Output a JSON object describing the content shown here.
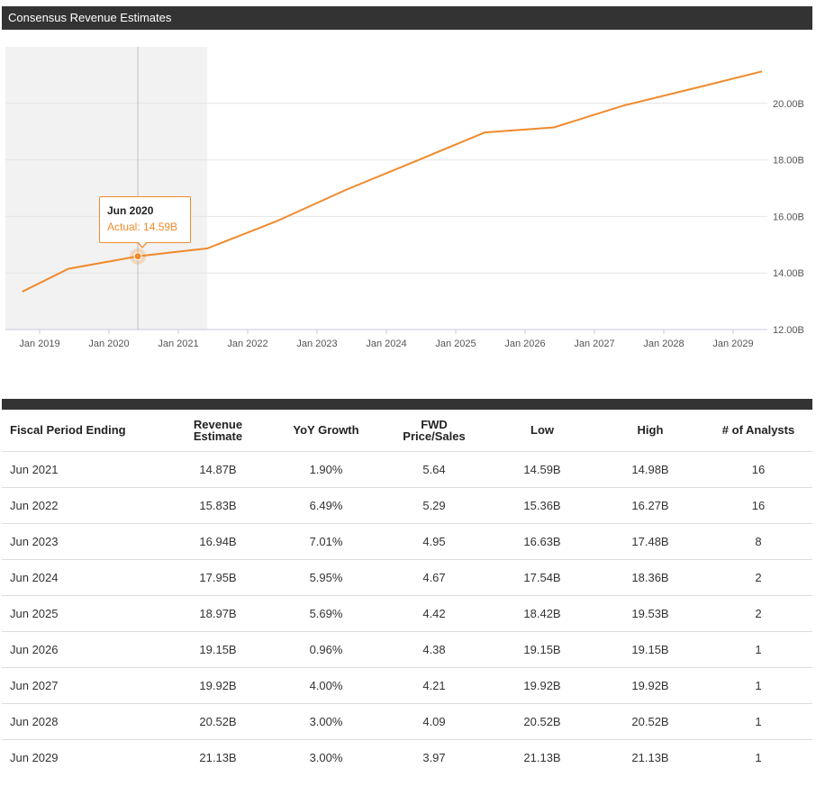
{
  "header": {
    "title": "Consensus Revenue Estimates"
  },
  "chart_data": {
    "type": "line",
    "title": "Consensus Revenue Estimates",
    "xlabel": "",
    "ylabel": "",
    "x_ticks": [
      "Jan 2019",
      "Jan 2020",
      "Jan 2021",
      "Jan 2022",
      "Jan 2023",
      "Jan 2024",
      "Jan 2025",
      "Jan 2026",
      "Jan 2027",
      "Jan 2028",
      "Jan 2029"
    ],
    "y_ticks": [
      "12.00B",
      "14.00B",
      "16.00B",
      "18.00B",
      "20.00B"
    ],
    "ylim": [
      12.0,
      22.0
    ],
    "y_axis_position": "right",
    "grid": true,
    "highlight_region": {
      "from": "Oct 2018",
      "to": "Jun 2021",
      "meaning": "actual"
    },
    "series": [
      {
        "color": "#f08a2c",
        "points": [
          {
            "x": "Oct 2018",
            "y": 13.34
          },
          {
            "x": "Jun 2019",
            "y": 14.15
          },
          {
            "x": "Jun 2020",
            "y": 14.59
          },
          {
            "x": "Jun 2021",
            "y": 14.87
          },
          {
            "x": "Jun 2022",
            "y": 15.83
          },
          {
            "x": "Jun 2023",
            "y": 16.94
          },
          {
            "x": "Jun 2024",
            "y": 17.95
          },
          {
            "x": "Jun 2025",
            "y": 18.97
          },
          {
            "x": "Jun 2026",
            "y": 19.15
          },
          {
            "x": "Jun 2027",
            "y": 19.92
          },
          {
            "x": "Jun 2028",
            "y": 20.52
          },
          {
            "x": "Jun 2029",
            "y": 21.13
          }
        ]
      }
    ],
    "tooltip": {
      "title": "Jun 2020",
      "value": "Actual: 14.59B",
      "x": "Jun 2020",
      "y": 14.59
    }
  },
  "table": {
    "headers": [
      [
        "Fiscal Period Ending"
      ],
      [
        "Revenue",
        "Estimate"
      ],
      [
        "YoY Growth"
      ],
      [
        "FWD",
        "Price/Sales"
      ],
      [
        "Low"
      ],
      [
        "High"
      ],
      [
        "# of Analysts"
      ]
    ],
    "rows": [
      [
        "Jun 2021",
        "14.87B",
        "1.90%",
        "5.64",
        "14.59B",
        "14.98B",
        "16"
      ],
      [
        "Jun 2022",
        "15.83B",
        "6.49%",
        "5.29",
        "15.36B",
        "16.27B",
        "16"
      ],
      [
        "Jun 2023",
        "16.94B",
        "7.01%",
        "4.95",
        "16.63B",
        "17.48B",
        "8"
      ],
      [
        "Jun 2024",
        "17.95B",
        "5.95%",
        "4.67",
        "17.54B",
        "18.36B",
        "2"
      ],
      [
        "Jun 2025",
        "18.97B",
        "5.69%",
        "4.42",
        "18.42B",
        "19.53B",
        "2"
      ],
      [
        "Jun 2026",
        "19.15B",
        "0.96%",
        "4.38",
        "19.15B",
        "19.15B",
        "1"
      ],
      [
        "Jun 2027",
        "19.92B",
        "4.00%",
        "4.21",
        "19.92B",
        "19.92B",
        "1"
      ],
      [
        "Jun 2028",
        "20.52B",
        "3.00%",
        "4.09",
        "20.52B",
        "20.52B",
        "1"
      ],
      [
        "Jun 2029",
        "21.13B",
        "3.00%",
        "3.97",
        "21.13B",
        "21.13B",
        "1"
      ]
    ]
  }
}
